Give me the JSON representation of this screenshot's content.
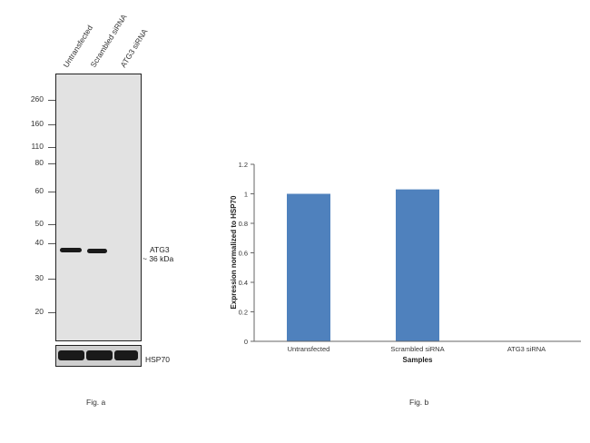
{
  "figure_a": {
    "lane_labels": [
      "Untransfected",
      "Scrambled siRNA",
      "ATG3 siRNA"
    ],
    "markers": [
      "260",
      "160",
      "110",
      "80",
      "60",
      "50",
      "40",
      "30",
      "20"
    ],
    "target_label": "ATG3",
    "target_size": "~ 36 kDa",
    "loading_control": "HSP70",
    "caption": "Fig. a"
  },
  "figure_b": {
    "caption": "Fig. b"
  },
  "chart_data": {
    "type": "bar",
    "categories": [
      "Untransfected",
      "Scrambled siRNA",
      "ATG3 siRNA"
    ],
    "values": [
      1.0,
      1.03,
      0.0
    ],
    "xlabel": "Samples",
    "ylabel": "Expression normalized to HSP70",
    "ylim": [
      0,
      1.2
    ],
    "yticks": [
      "0",
      "0.2",
      "0.4",
      "0.6",
      "0.8",
      "1",
      "1.2"
    ],
    "bar_color": "#4f81bd"
  }
}
